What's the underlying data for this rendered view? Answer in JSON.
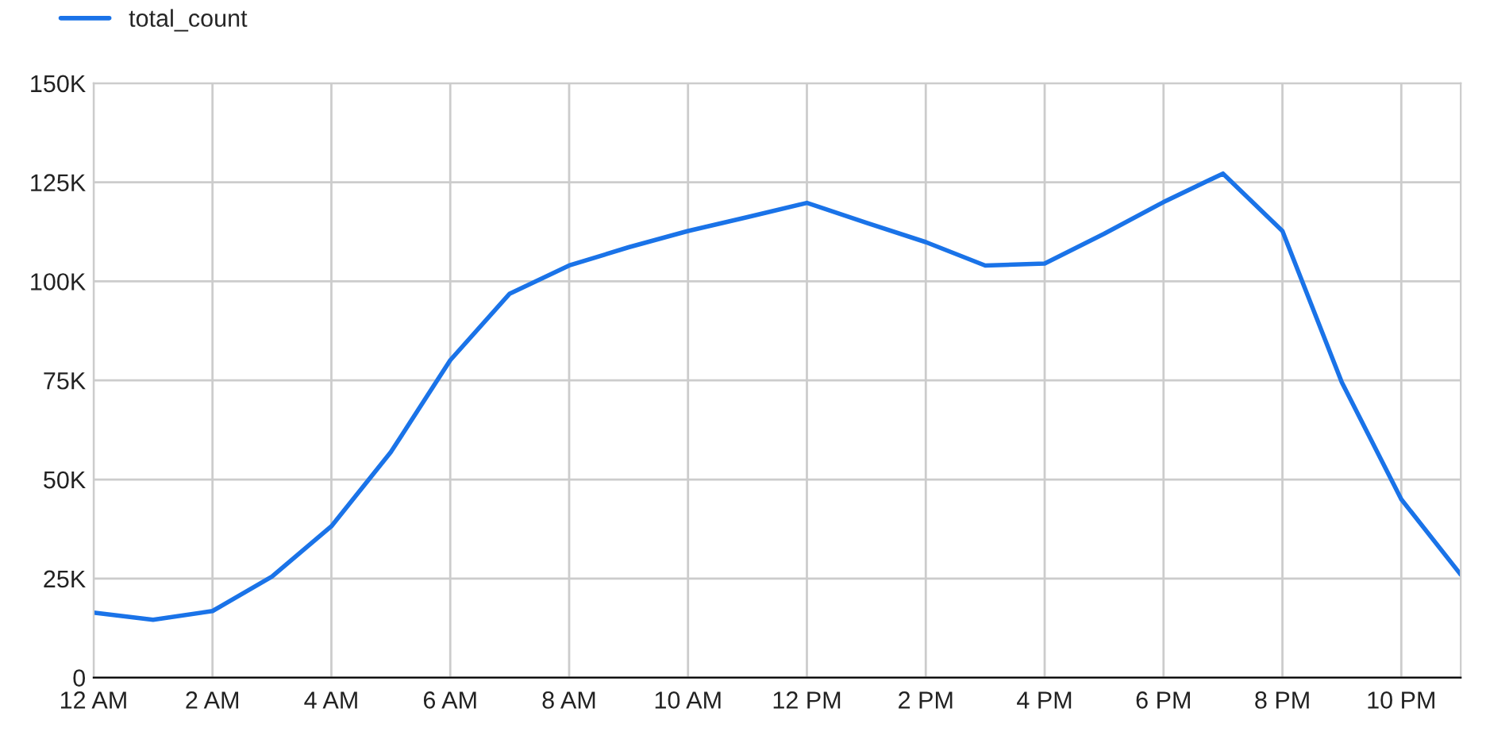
{
  "chart_data": {
    "type": "line",
    "categories": [
      "12 AM",
      null,
      "2 AM",
      null,
      "4 AM",
      null,
      "6 AM",
      null,
      "8 AM",
      null,
      "10 AM",
      null,
      "12 PM",
      null,
      "2 PM",
      null,
      "4 PM",
      null,
      "6 PM",
      null,
      "8 PM",
      null,
      "10 PM",
      null
    ],
    "series": [
      {
        "name": "total_count",
        "color": "#1a73e8",
        "values": [
          16.4,
          14.6,
          16.8,
          25.5,
          38.2,
          56.9,
          80.1,
          96.9,
          104,
          108.6,
          112.7,
          116.2,
          119.8,
          114.8,
          109.9,
          104,
          104.5,
          112,
          120,
          127.2,
          112.7,
          74.5,
          45,
          26
        ]
      }
    ],
    "ylim": [
      0,
      150
    ],
    "yticks": [
      0,
      {
        "value": 25,
        "label": "25K"
      },
      {
        "value": 50,
        "label": "50K"
      },
      {
        "value": 75,
        "label": "75K"
      },
      {
        "value": 100,
        "label": "100K"
      },
      {
        "value": 125,
        "label": "125K"
      },
      {
        "value": 150,
        "label": "150K"
      }
    ],
    "grid": true,
    "legend": "top left",
    "marker": "none",
    "line_style": "solid"
  }
}
